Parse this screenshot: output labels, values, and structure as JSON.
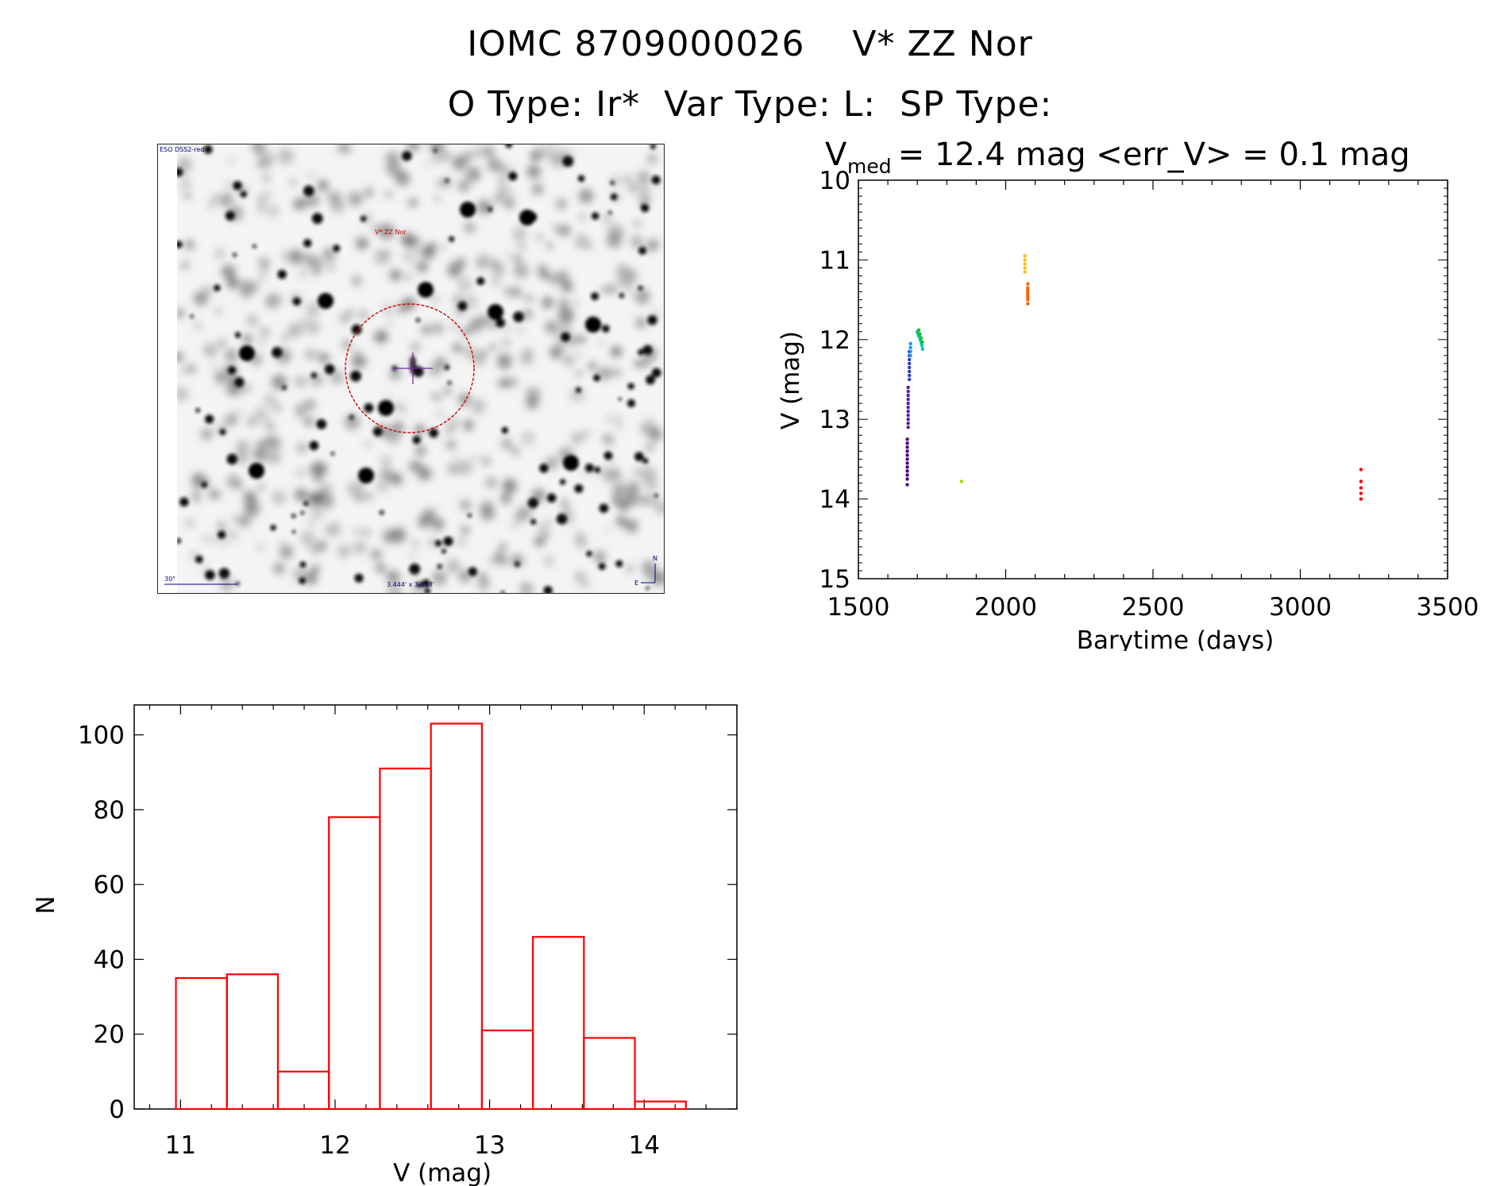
{
  "header": {
    "line1": "IOMC 8709000026    V* ZZ Nor",
    "line2": "O Type: Ir*  Var Type: L:  SP Type:"
  },
  "image_panel": {
    "survey_label": "ESO DSS2-red",
    "target_label": "V* ZZ Nor",
    "scale_label": "30\"",
    "fov_label": "3.444' x 3.058'",
    "compass_n": "N",
    "compass_e": "E"
  },
  "chart_data": [
    {
      "type": "scatter",
      "title_prefix": "V",
      "title_subscript": "med",
      "title_rest": " = 12.4 mag <err_V> = 0.1 mag",
      "xlabel": "Barytime (days)",
      "ylabel": "V (mag)",
      "xlim": [
        1500,
        3500
      ],
      "ylim": [
        15,
        10
      ],
      "y_inverted": true,
      "xticks": [
        1500,
        2000,
        2500,
        3000,
        3500
      ],
      "yticks": [
        10,
        11,
        12,
        13,
        14,
        15
      ],
      "series": [
        {
          "color": "#4b0082",
          "x": [
            1666,
            1666,
            1666,
            1666,
            1666,
            1666,
            1666,
            1666,
            1666,
            1666,
            1666,
            1666
          ],
          "y": [
            13.25,
            13.3,
            13.35,
            13.4,
            13.45,
            13.5,
            13.55,
            13.6,
            13.65,
            13.7,
            13.75,
            13.82
          ]
        },
        {
          "color": "#5a1aa0",
          "x": [
            1669,
            1669,
            1669,
            1669,
            1669,
            1669,
            1669,
            1669,
            1669,
            1669,
            1669
          ],
          "y": [
            12.6,
            12.65,
            12.7,
            12.75,
            12.8,
            12.85,
            12.9,
            12.95,
            13.0,
            13.05,
            13.1
          ]
        },
        {
          "color": "#2a3fd0",
          "x": [
            1673,
            1673,
            1673,
            1673,
            1673,
            1673,
            1673,
            1673
          ],
          "y": [
            12.15,
            12.2,
            12.25,
            12.3,
            12.35,
            12.4,
            12.45,
            12.5
          ]
        },
        {
          "color": "#1e90ff",
          "x": [
            1677,
            1677,
            1677,
            1677
          ],
          "y": [
            12.05,
            12.1,
            12.15,
            12.2
          ]
        },
        {
          "color": "#00c8a0",
          "x": [
            1700,
            1702,
            1704,
            1706,
            1708,
            1710,
            1712,
            1714,
            1716,
            1718
          ],
          "y": [
            11.9,
            11.92,
            11.95,
            11.93,
            11.97,
            12.0,
            12.02,
            12.05,
            12.08,
            12.12
          ]
        },
        {
          "color": "#18c018",
          "x": [
            1705,
            1709,
            1713,
            1717
          ],
          "y": [
            11.88,
            11.93,
            11.98,
            12.03
          ]
        },
        {
          "color": "#a0e000",
          "x": [
            1850
          ],
          "y": [
            13.78
          ]
        },
        {
          "color": "#ffc000",
          "x": [
            2065,
            2065,
            2065,
            2065,
            2065
          ],
          "y": [
            10.95,
            11.0,
            11.05,
            11.1,
            11.15
          ]
        },
        {
          "color": "#ff6000",
          "x": [
            2075,
            2075,
            2075,
            2075,
            2075,
            2075,
            2075,
            2075
          ],
          "y": [
            11.3,
            11.35,
            11.38,
            11.41,
            11.44,
            11.47,
            11.5,
            11.55
          ]
        },
        {
          "color": "#ff0000",
          "x": [
            3206,
            3206,
            3206,
            3206,
            3206
          ],
          "y": [
            13.63,
            13.78,
            13.86,
            13.93,
            14.0
          ]
        }
      ]
    },
    {
      "type": "bar",
      "subtype": "histogram",
      "xlabel": "V (mag)",
      "ylabel": "N",
      "xlim": [
        10.7,
        14.6
      ],
      "ylim": [
        0,
        108
      ],
      "xticks": [
        11,
        12,
        13,
        14
      ],
      "yticks": [
        0,
        20,
        40,
        60,
        80,
        100
      ],
      "bin_edges": [
        10.97,
        11.3,
        11.63,
        11.96,
        12.29,
        12.62,
        12.95,
        13.28,
        13.61,
        13.94,
        14.27
      ],
      "counts": [
        35,
        36,
        10,
        78,
        91,
        103,
        21,
        46,
        19,
        2
      ],
      "color": "#ff0000"
    }
  ]
}
